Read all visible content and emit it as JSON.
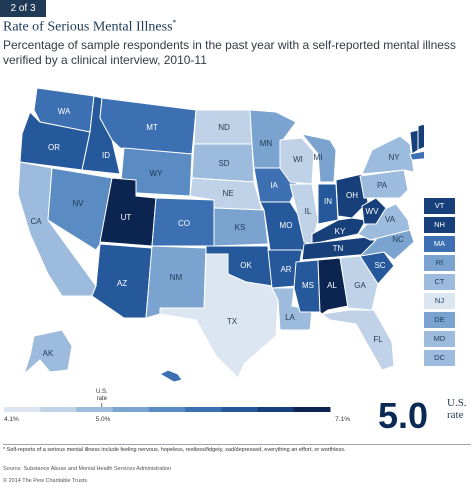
{
  "badge": "2 of 3",
  "title": "Rate of Serious Mental Illness",
  "title_mark": "*",
  "subtitle": "Percentage of sample respondents in the past year with a self-reported mental illness verified by a clinical interview, 2010-11",
  "colors": {
    "c1": "#dce6f1",
    "c2": "#bfd2e7",
    "c3": "#9dbbdc",
    "c4": "#7aa3cf",
    "c5": "#5b8bc3",
    "c6": "#3c70b2",
    "c7": "#26599b",
    "c8": "#17407a",
    "c9": "#0b2550"
  },
  "states": [
    {
      "abbr": "WA",
      "level": 6
    },
    {
      "abbr": "OR",
      "level": 7
    },
    {
      "abbr": "CA",
      "level": 3
    },
    {
      "abbr": "ID",
      "level": 7
    },
    {
      "abbr": "NV",
      "level": 5
    },
    {
      "abbr": "MT",
      "level": 6
    },
    {
      "abbr": "WY",
      "level": 5
    },
    {
      "abbr": "UT",
      "level": 9
    },
    {
      "abbr": "AZ",
      "level": 7
    },
    {
      "abbr": "CO",
      "level": 6
    },
    {
      "abbr": "NM",
      "level": 4
    },
    {
      "abbr": "ND",
      "level": 2
    },
    {
      "abbr": "SD",
      "level": 3
    },
    {
      "abbr": "NE",
      "level": 2
    },
    {
      "abbr": "KS",
      "level": 4
    },
    {
      "abbr": "OK",
      "level": 7
    },
    {
      "abbr": "TX",
      "level": 1
    },
    {
      "abbr": "MN",
      "level": 4
    },
    {
      "abbr": "IA",
      "level": 6
    },
    {
      "abbr": "MO",
      "level": 7
    },
    {
      "abbr": "AR",
      "level": 7
    },
    {
      "abbr": "LA",
      "level": 3
    },
    {
      "abbr": "WI",
      "level": 2
    },
    {
      "abbr": "IL",
      "level": 2
    },
    {
      "abbr": "MS",
      "level": 7
    },
    {
      "abbr": "MI",
      "level": 4
    },
    {
      "abbr": "IN",
      "level": 7
    },
    {
      "abbr": "KY",
      "level": 8
    },
    {
      "abbr": "TN",
      "level": 8
    },
    {
      "abbr": "AL",
      "level": 9
    },
    {
      "abbr": "OH",
      "level": 8
    },
    {
      "abbr": "WV",
      "level": 8
    },
    {
      "abbr": "GA",
      "level": 2
    },
    {
      "abbr": "FL",
      "level": 2
    },
    {
      "abbr": "SC",
      "level": 7
    },
    {
      "abbr": "NC",
      "level": 4
    },
    {
      "abbr": "VA",
      "level": 3
    },
    {
      "abbr": "PA",
      "level": 3
    },
    {
      "abbr": "NY",
      "level": 3
    },
    {
      "abbr": "ME",
      "level": 4
    },
    {
      "abbr": "AK",
      "level": 3
    },
    {
      "abbr": "HI",
      "level": 6
    }
  ],
  "northeast": [
    {
      "abbr": "VT",
      "level": 8
    },
    {
      "abbr": "NH",
      "level": 8
    },
    {
      "abbr": "MA",
      "level": 6
    },
    {
      "abbr": "RI",
      "level": 4
    },
    {
      "abbr": "CT",
      "level": 3
    },
    {
      "abbr": "NJ",
      "level": 1
    },
    {
      "abbr": "DE",
      "level": 4
    },
    {
      "abbr": "MD",
      "level": 3
    },
    {
      "abbr": "DC",
      "level": 3
    }
  ],
  "scale": {
    "us_label": "U.S.",
    "rate_label": "rate",
    "min_label": "4.1%",
    "mid_label": "5.0%",
    "max_label": "7.1%",
    "min": 4.1,
    "us_value": 5.0,
    "max": 7.1
  },
  "us_rate": {
    "value": "5.0",
    "unit_line1": "U.S.",
    "unit_line2": "rate"
  },
  "footnote": "* Self-reports of a serious mental illness include feeling nervous, hopeless, restless/fidgety, sad/depressed, everything an effort, or worthless.",
  "source": "Source: Substance Abuse and Mental Health Services Administration",
  "copyright": "© 2014 The Pew Charitable Trusts"
}
